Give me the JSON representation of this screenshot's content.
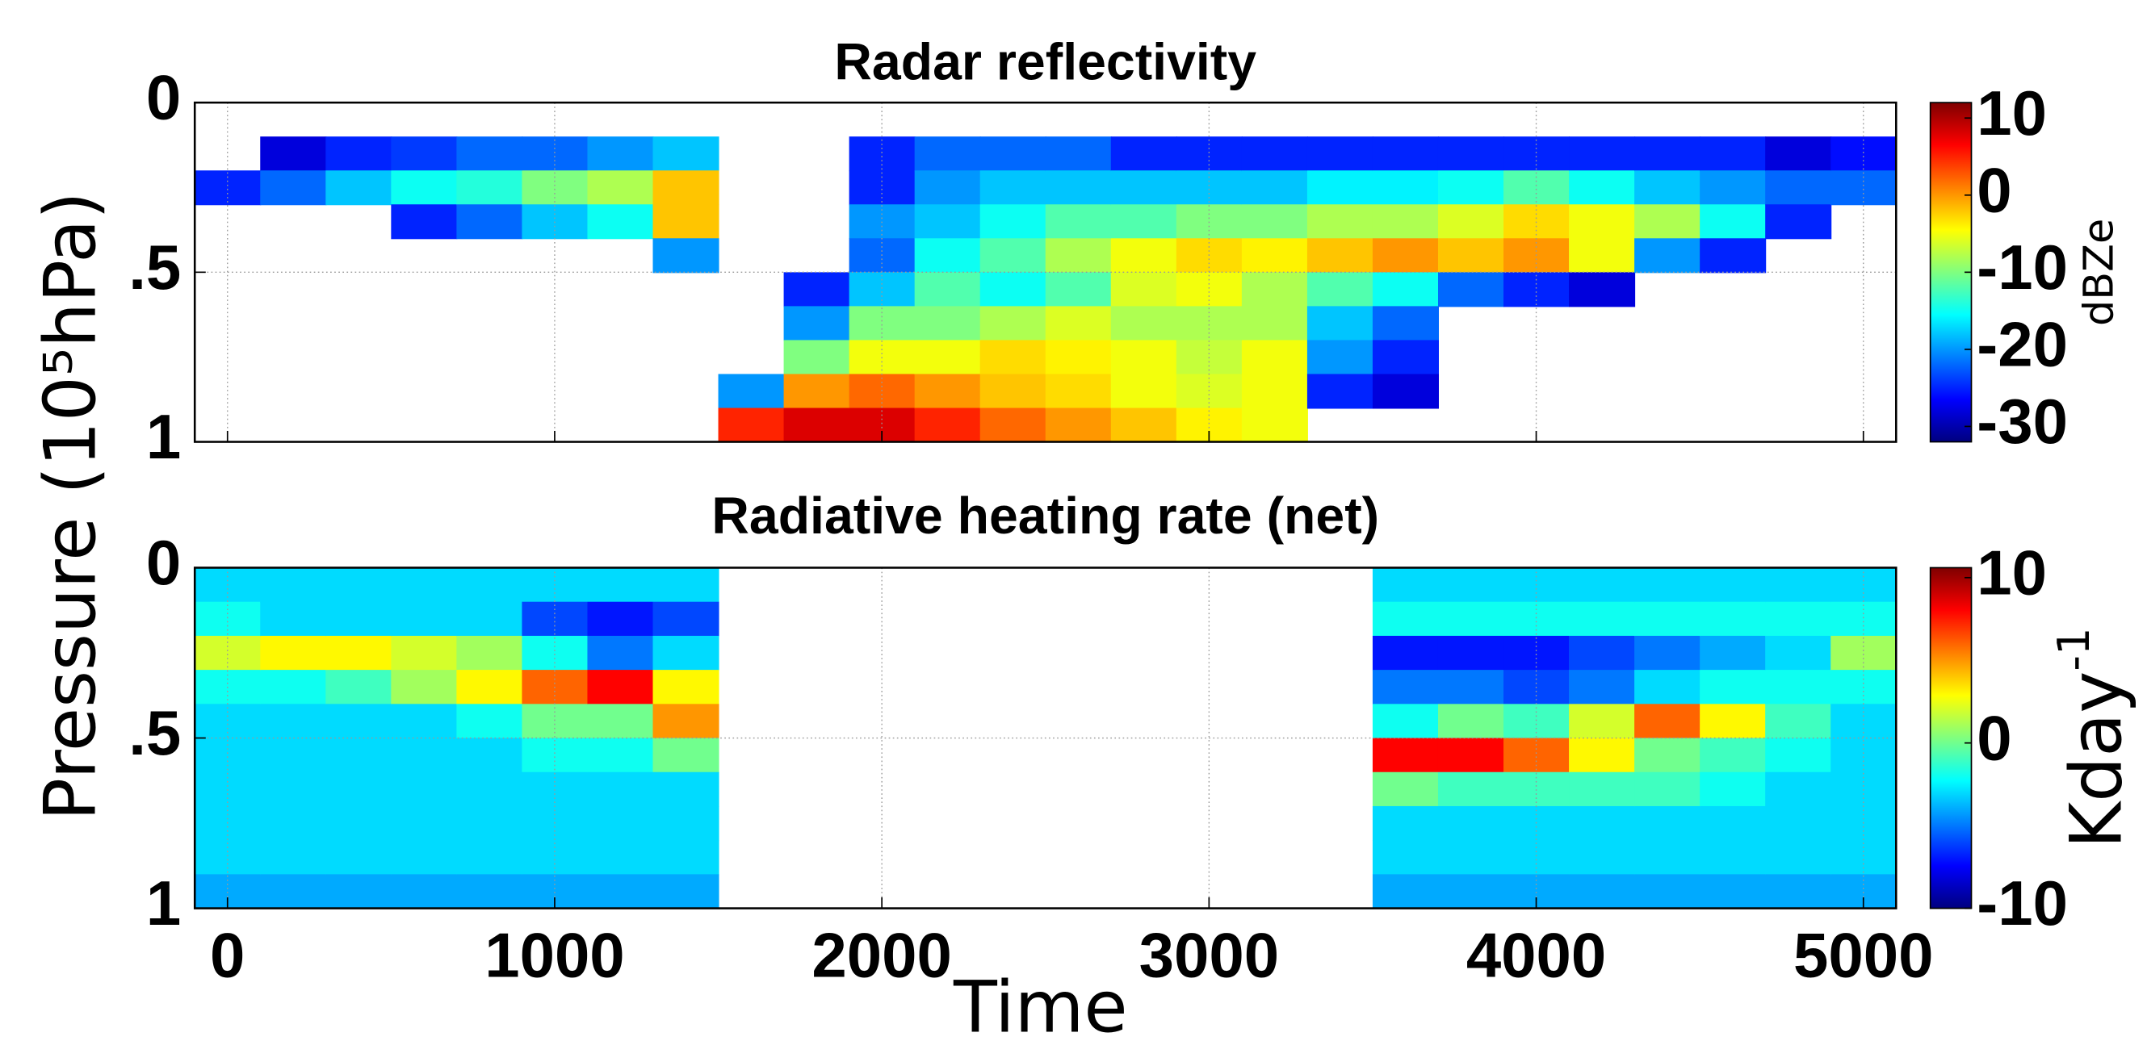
{
  "chart_data": [
    {
      "type": "heatmap",
      "title": "Radar reflectivity",
      "ylabel": "Pressure (10⁵hPa)",
      "colorbar_label": "dBZe",
      "colormap": [
        "#00007f",
        "#0000ff",
        "#00ffff",
        "#ffff00",
        "#ff0000",
        "#7f0000"
      ],
      "clim": [
        -32,
        12
      ],
      "cticks": [
        10,
        0,
        -10,
        -20,
        -30
      ],
      "xlim": [
        -100,
        5100
      ],
      "ylim": [
        1,
        0
      ],
      "xticks": [
        0,
        1000,
        2000,
        3000,
        4000,
        5000
      ],
      "yticks": [
        0,
        {
          "value": 0.5,
          "label": ".5"
        },
        1
      ],
      "grid": true,
      "x": [
        -100,
        100,
        300,
        500,
        700,
        900,
        1100,
        1300,
        1500,
        1700,
        1900,
        2100,
        2300,
        2500,
        2700,
        2900,
        3100,
        3300,
        3500,
        3700,
        3900,
        4100,
        4300,
        4500,
        4700,
        4900,
        5100
      ],
      "y": [
        0,
        0.1,
        0.2,
        0.3,
        0.4,
        0.5,
        0.6,
        0.7,
        0.8,
        0.9,
        1
      ],
      "z": [
        [
          null,
          null,
          -25,
          null,
          null,
          null,
          null,
          null,
          null,
          null
        ],
        [
          null,
          -28,
          -22,
          null,
          null,
          null,
          null,
          null,
          null,
          null
        ],
        [
          null,
          -25,
          -18,
          null,
          null,
          null,
          null,
          null,
          null,
          null
        ],
        [
          null,
          -24,
          -15,
          -25,
          null,
          null,
          null,
          null,
          null,
          null
        ],
        [
          null,
          -22,
          -14,
          -22,
          null,
          null,
          null,
          null,
          null,
          null
        ],
        [
          null,
          -22,
          -10,
          -18,
          null,
          null,
          null,
          null,
          null,
          null
        ],
        [
          null,
          -20,
          -8,
          -15,
          null,
          null,
          null,
          null,
          null,
          null
        ],
        [
          null,
          -18,
          -2,
          -2,
          -20,
          null,
          null,
          null,
          null,
          null
        ],
        [
          null,
          null,
          null,
          null,
          null,
          null,
          null,
          null,
          -20,
          5
        ],
        [
          null,
          null,
          null,
          null,
          null,
          -25,
          -20,
          -10,
          0,
          8
        ],
        [
          null,
          -25,
          -25,
          -20,
          -22,
          -18,
          -10,
          -5,
          2,
          8
        ],
        [
          null,
          -22,
          -20,
          -18,
          -15,
          -12,
          -10,
          -5,
          0,
          5
        ],
        [
          null,
          -22,
          -18,
          -15,
          -12,
          -15,
          -8,
          -3,
          -2,
          2
        ],
        [
          null,
          -22,
          -18,
          -12,
          -8,
          -12,
          -6,
          -4,
          -3,
          0
        ],
        [
          null,
          -25,
          -18,
          -12,
          -5,
          -6,
          -8,
          -5,
          -5,
          -2
        ],
        [
          null,
          -25,
          -18,
          -10,
          -3,
          -5,
          -8,
          -7,
          -6,
          -4
        ],
        [
          null,
          -25,
          -18,
          -10,
          -4,
          -8,
          -8,
          -5,
          -5,
          -5
        ],
        [
          null,
          -25,
          -16,
          -8,
          -2,
          -12,
          -18,
          -20,
          -25,
          null
        ],
        [
          null,
          -25,
          -16,
          -8,
          0,
          -15,
          -22,
          -25,
          -28,
          null
        ],
        [
          null,
          -25,
          -15,
          -6,
          -2,
          -22,
          null,
          null,
          null,
          null
        ],
        [
          null,
          -25,
          -12,
          -3,
          0,
          -25,
          null,
          null,
          null,
          null
        ],
        [
          null,
          -25,
          -15,
          -5,
          -5,
          -28,
          null,
          null,
          null,
          null
        ],
        [
          null,
          -25,
          -18,
          -8,
          -20,
          null,
          null,
          null,
          null,
          null
        ],
        [
          null,
          -25,
          -20,
          -15,
          -25,
          null,
          null,
          null,
          null,
          null
        ],
        [
          null,
          -28,
          -22,
          -25,
          null,
          null,
          null,
          null,
          null,
          null
        ],
        [
          null,
          -26,
          -22,
          null,
          null,
          null,
          null,
          null,
          null,
          null
        ]
      ]
    },
    {
      "type": "heatmap",
      "title": "Radiative heating rate (net)",
      "xlabel": "Time",
      "colorbar_label": "Kday",
      "colorbar_label_sup": "-1",
      "colormap": [
        "#00007f",
        "#0000ff",
        "#00ffff",
        "#ffff00",
        "#ff0000",
        "#7f0000"
      ],
      "clim": [
        -10,
        10.6
      ],
      "cticks": [
        10,
        0,
        -10
      ],
      "xlim": [
        -100,
        5100
      ],
      "ylim": [
        1,
        0
      ],
      "xticks": [
        0,
        1000,
        2000,
        3000,
        4000,
        5000
      ],
      "yticks": [
        0,
        {
          "value": 0.5,
          "label": ".5"
        },
        1
      ],
      "grid": true,
      "x": [
        -100,
        100,
        300,
        500,
        700,
        900,
        1100,
        1300,
        1500,
        1700,
        1900,
        2100,
        2300,
        2500,
        2700,
        2900,
        3100,
        3300,
        3500,
        3700,
        3900,
        4100,
        4300,
        4500,
        4700,
        4900,
        5100
      ],
      "y": [
        0,
        0.1,
        0.2,
        0.3,
        0.4,
        0.5,
        0.6,
        0.7,
        0.8,
        0.9,
        1
      ],
      "z": [
        [
          -3,
          -2,
          2,
          -2,
          -3,
          -3,
          -3,
          -3,
          -3,
          -4
        ],
        [
          -3,
          -3,
          3,
          -2,
          -3,
          -3,
          -3,
          -3,
          -3,
          -4
        ],
        [
          -3,
          -3,
          3,
          -1,
          -3,
          -3,
          -3,
          -3,
          -3,
          -4
        ],
        [
          -3,
          -3,
          2,
          1,
          -3,
          -3,
          -3,
          -3,
          -3,
          -4
        ],
        [
          -3,
          -3,
          1,
          3,
          -2,
          -3,
          -3,
          -3,
          -3,
          -4
        ],
        [
          -3,
          -6,
          -2,
          6,
          0,
          -2,
          -3,
          -3,
          -3,
          -4
        ],
        [
          -3,
          -7,
          -5,
          8,
          0,
          -2,
          -3,
          -3,
          -3,
          -4
        ],
        [
          -3,
          -6,
          -3,
          3,
          5,
          0,
          -3,
          -3,
          -3,
          -4
        ],
        [
          null,
          null,
          null,
          null,
          null,
          null,
          null,
          null,
          null,
          null
        ],
        [
          null,
          null,
          null,
          null,
          null,
          null,
          null,
          null,
          null,
          null
        ],
        [
          null,
          null,
          null,
          null,
          null,
          null,
          null,
          null,
          null,
          null
        ],
        [
          null,
          null,
          null,
          null,
          null,
          null,
          null,
          null,
          null,
          null
        ],
        [
          null,
          null,
          null,
          null,
          null,
          null,
          null,
          null,
          null,
          null
        ],
        [
          null,
          null,
          null,
          null,
          null,
          null,
          null,
          null,
          null,
          null
        ],
        [
          null,
          null,
          null,
          null,
          null,
          null,
          null,
          null,
          null,
          null
        ],
        [
          null,
          null,
          null,
          null,
          null,
          null,
          null,
          null,
          null,
          null
        ],
        [
          null,
          null,
          null,
          null,
          null,
          null,
          null,
          null,
          null,
          null
        ],
        [
          null,
          null,
          null,
          null,
          null,
          null,
          null,
          null,
          null,
          null
        ],
        [
          -3,
          -2,
          -7,
          -5,
          -2,
          8,
          0,
          -3,
          -3,
          -4
        ],
        [
          -3,
          -2,
          -7,
          -5,
          0,
          8,
          -1,
          -3,
          -3,
          -4
        ],
        [
          -3,
          -2,
          -7,
          -6,
          -1,
          6,
          -1,
          -3,
          -3,
          -4
        ],
        [
          -3,
          -2,
          -6,
          -5,
          2,
          3,
          -1,
          -3,
          -3,
          -4
        ],
        [
          -3,
          -2,
          -5,
          -3,
          6,
          0,
          -1,
          -3,
          -3,
          -4
        ],
        [
          -3,
          -2,
          -4,
          -2,
          3,
          -1,
          -2,
          -3,
          -3,
          -4
        ],
        [
          -3,
          -2,
          -3,
          -2,
          -1,
          -2,
          -3,
          -3,
          -3,
          -4
        ],
        [
          -3,
          -2,
          1,
          -2,
          -3,
          -3,
          -3,
          -3,
          -3,
          -4
        ]
      ]
    }
  ]
}
